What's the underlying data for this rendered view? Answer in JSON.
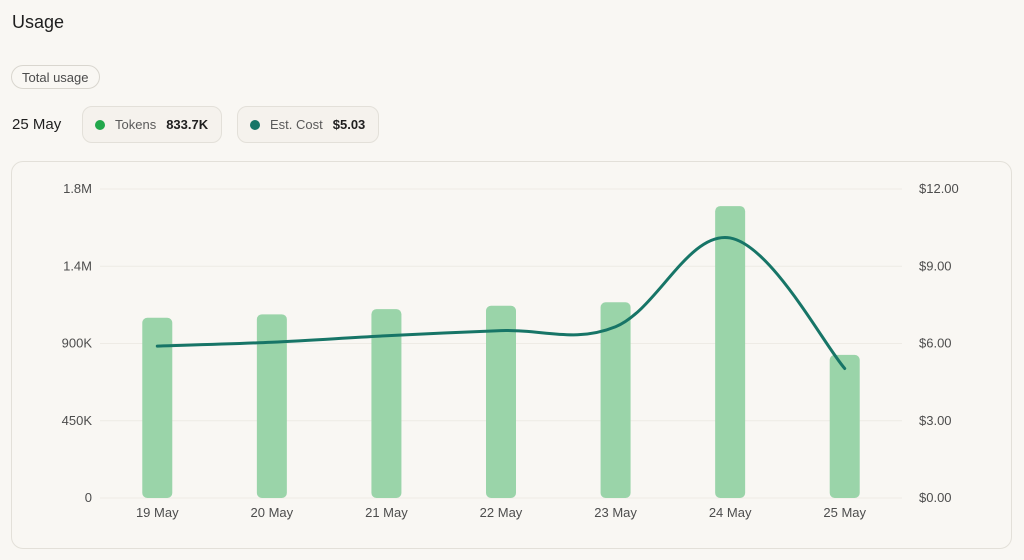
{
  "page": {
    "title": "Usage"
  },
  "filter": {
    "label": "Total usage"
  },
  "summary": {
    "date": "25 May",
    "tokens": {
      "label": "Tokens",
      "value": "833.7K",
      "color": "#22a84c"
    },
    "cost": {
      "label": "Est. Cost",
      "value": "$5.03",
      "color": "#177567"
    }
  },
  "chart_data": {
    "type": "bar",
    "categories": [
      "19 May",
      "20 May",
      "21 May",
      "22 May",
      "23 May",
      "24 May",
      "25 May"
    ],
    "series": [
      {
        "name": "Tokens",
        "type": "bar",
        "axis": "left",
        "color": "#9ad4a9",
        "values": [
          1050000,
          1070000,
          1100000,
          1120000,
          1140000,
          1700000,
          833700
        ]
      },
      {
        "name": "Est. Cost",
        "type": "line",
        "axis": "right",
        "color": "#177567",
        "values": [
          5.9,
          6.05,
          6.3,
          6.5,
          6.65,
          10.1,
          5.03
        ]
      }
    ],
    "y_left": {
      "ticks": [
        "0",
        "450K",
        "900K",
        "1.4M",
        "1.8M"
      ],
      "tick_values": [
        0,
        450000,
        900000,
        1350000,
        1800000
      ],
      "ylim": [
        0,
        1800000
      ]
    },
    "y_right": {
      "ticks": [
        "$0.00",
        "$3.00",
        "$6.00",
        "$9.00",
        "$12.00"
      ],
      "tick_values": [
        0,
        3,
        6,
        9,
        12
      ],
      "ylim": [
        0,
        12
      ]
    },
    "grid": true
  }
}
